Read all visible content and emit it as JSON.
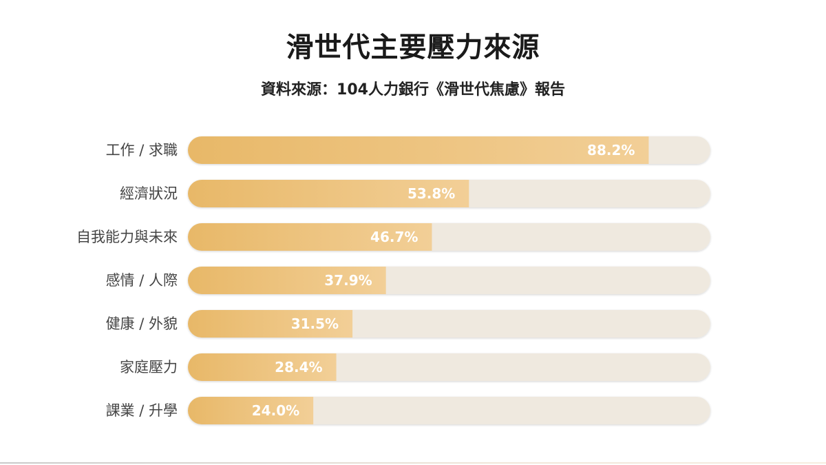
{
  "chart_data": {
    "type": "bar",
    "orientation": "horizontal",
    "title": "滑世代主要壓力來源",
    "subtitle": "資料來源：104人力銀行《滑世代焦慮》報告",
    "categories": [
      "工作 / 求職",
      "經濟狀況",
      "自我能力與未來",
      "感情 / 人際",
      "健康 / 外貌",
      "家庭壓力",
      "課業 / 升學"
    ],
    "values": [
      88.2,
      53.8,
      46.7,
      37.9,
      31.5,
      28.4,
      24.0
    ],
    "value_labels": [
      "88.2%",
      "53.8%",
      "46.7%",
      "37.9%",
      "31.5%",
      "28.4%",
      "24.0%"
    ],
    "xlim": [
      0,
      100
    ],
    "grid": false,
    "legend": "none",
    "colors": {
      "bar_start": "#e8b868",
      "bar_end": "#f2cf97",
      "track": "#efe9df",
      "label": "#444444"
    }
  }
}
